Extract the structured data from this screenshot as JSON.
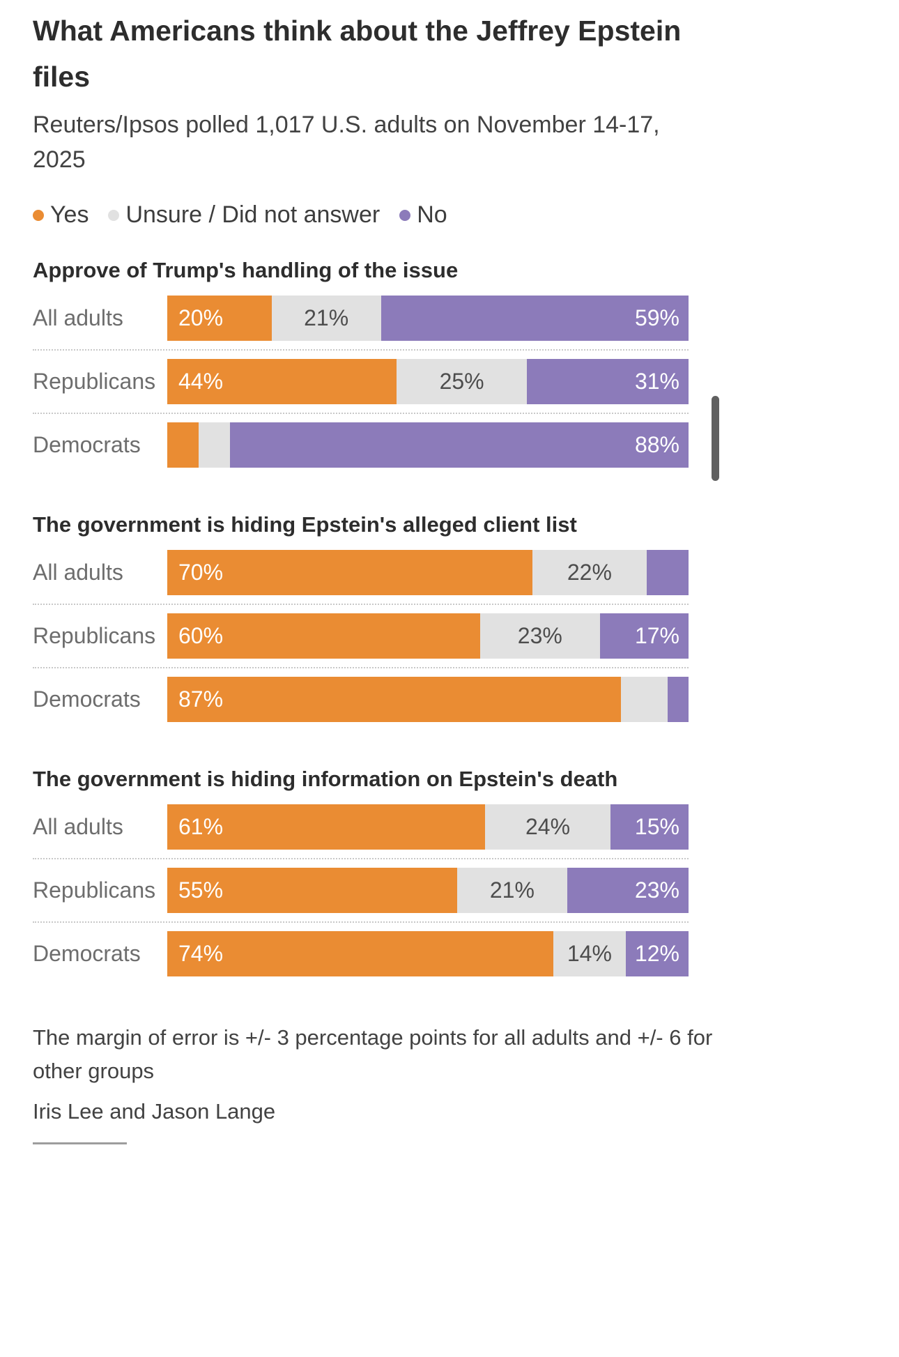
{
  "page": {
    "title": "What Americans think about the Jeffrey Epstein files",
    "subtitle": "Reuters/Ipsos polled 1,017 U.S. adults on November 14-17, 2025",
    "footnote": "The margin of error is +/- 3 percentage points for all adults and +/- 6 for other groups",
    "byline": "Iris Lee and Jason Lange"
  },
  "legend": {
    "items": [
      {
        "label": "Yes",
        "color": "#EA8C33",
        "text_color": "#ffffff"
      },
      {
        "label": "Unsure / Did not answer",
        "color": "#E1E1E1",
        "text_color": "#4d4d4d"
      },
      {
        "label": "No",
        "color": "#8C7BBA",
        "text_color": "#ffffff"
      }
    ]
  },
  "chart_data": [
    {
      "type": "bar",
      "orientation": "horizontal",
      "stacked": true,
      "title": "Approve of Trump's handling of the issue",
      "categories": [
        "All adults",
        "Republicans",
        "Democrats"
      ],
      "series": [
        {
          "name": "Yes",
          "values": [
            20,
            44,
            6
          ]
        },
        {
          "name": "Unsure / Did not answer",
          "values": [
            21,
            25,
            6
          ]
        },
        {
          "name": "No",
          "values": [
            59,
            31,
            88
          ]
        }
      ],
      "data_labels": [
        [
          "20%",
          "21%",
          "59%"
        ],
        [
          "44%",
          "25%",
          "31%"
        ],
        [
          "",
          "",
          "88%"
        ]
      ]
    },
    {
      "type": "bar",
      "orientation": "horizontal",
      "stacked": true,
      "title": "The government is hiding Epstein's alleged client list",
      "categories": [
        "All adults",
        "Republicans",
        "Democrats"
      ],
      "series": [
        {
          "name": "Yes",
          "values": [
            70,
            60,
            87
          ]
        },
        {
          "name": "Unsure / Did not answer",
          "values": [
            22,
            23,
            9
          ]
        },
        {
          "name": "No",
          "values": [
            8,
            17,
            4
          ]
        }
      ],
      "data_labels": [
        [
          "70%",
          "22%",
          ""
        ],
        [
          "60%",
          "23%",
          "17%"
        ],
        [
          "87%",
          "",
          ""
        ]
      ]
    },
    {
      "type": "bar",
      "orientation": "horizontal",
      "stacked": true,
      "title": "The government is hiding information on Epstein's death",
      "categories": [
        "All adults",
        "Republicans",
        "Democrats"
      ],
      "series": [
        {
          "name": "Yes",
          "values": [
            61,
            55,
            74
          ]
        },
        {
          "name": "Unsure / Did not answer",
          "values": [
            24,
            21,
            14
          ]
        },
        {
          "name": "No",
          "values": [
            15,
            23,
            12
          ]
        }
      ],
      "data_labels": [
        [
          "61%",
          "24%",
          "15%"
        ],
        [
          "55%",
          "21%",
          "23%"
        ],
        [
          "74%",
          "14%",
          "12%"
        ]
      ]
    }
  ]
}
